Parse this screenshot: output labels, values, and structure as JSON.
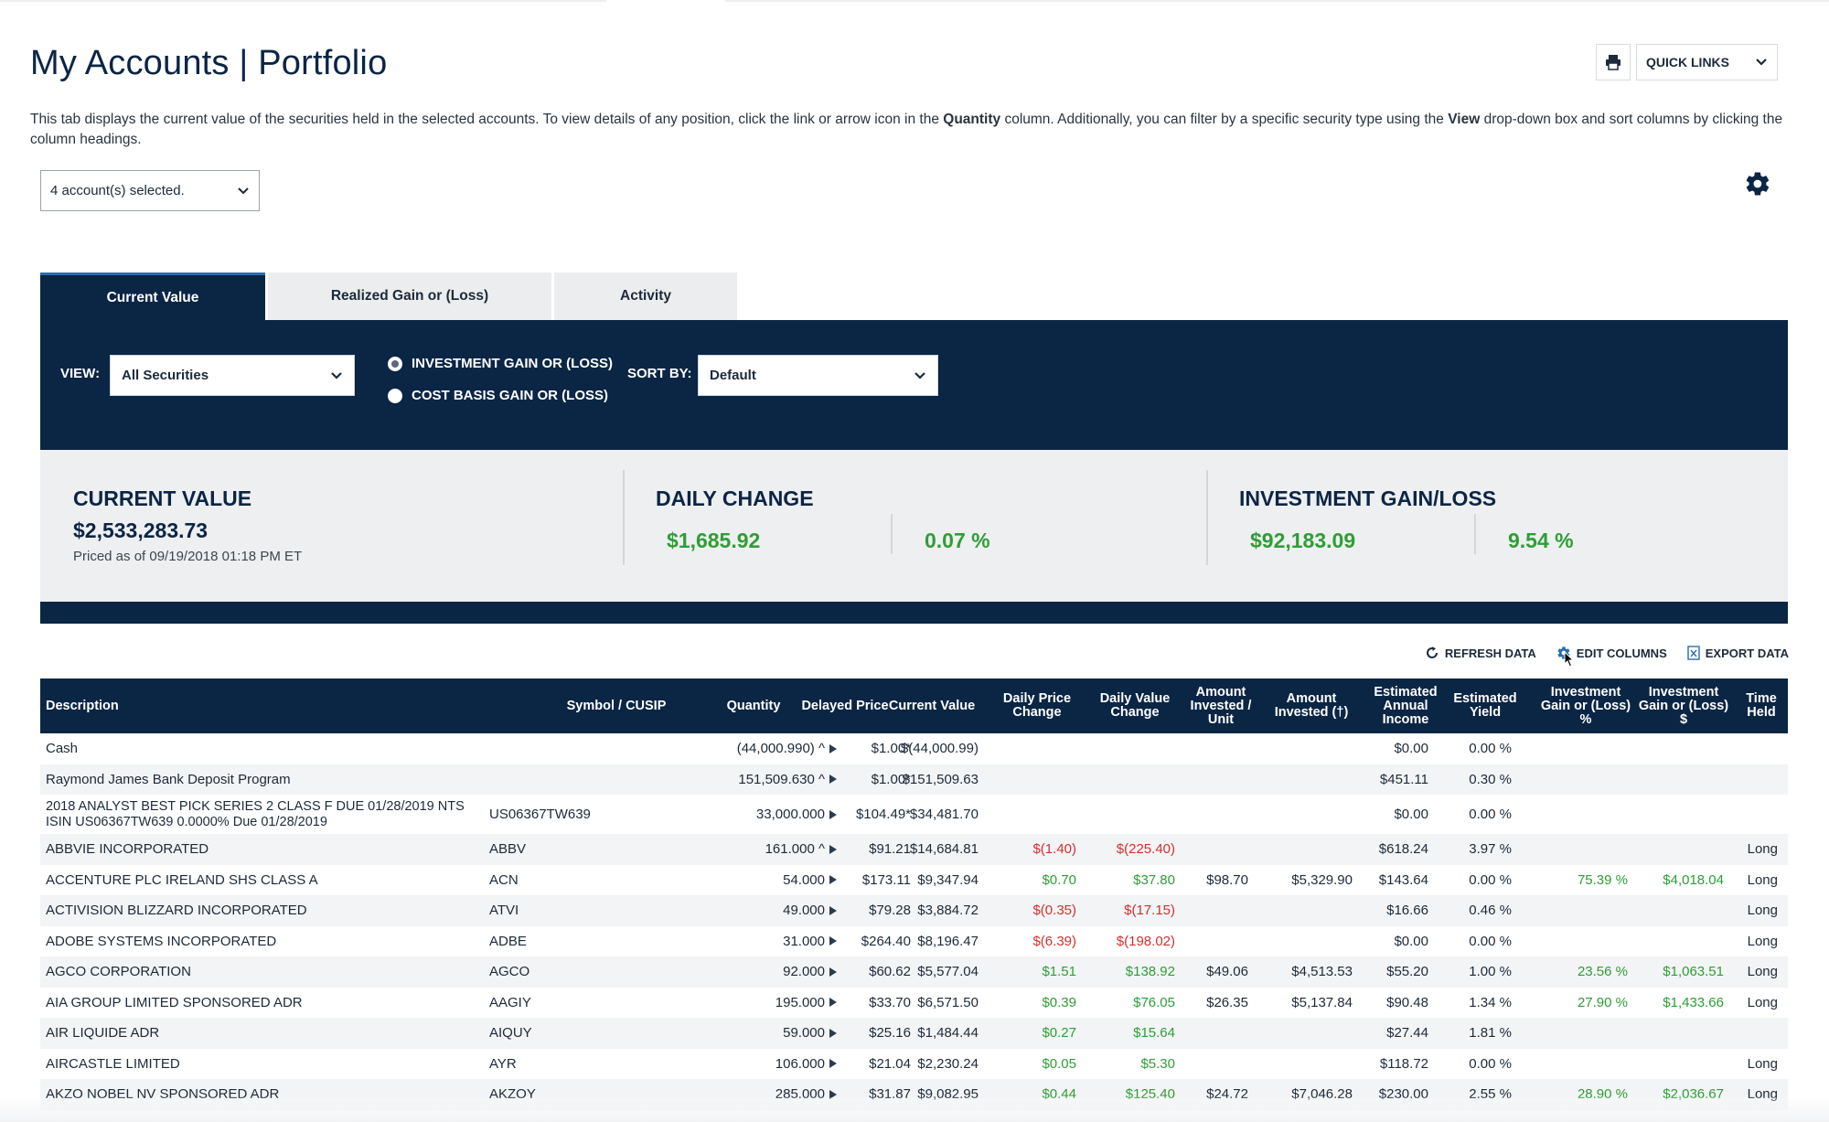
{
  "header": {
    "title": "My Accounts | Portfolio",
    "quick_links": "QUICK LINKS"
  },
  "description": {
    "part1": "This tab displays the current value of the securities held in the selected accounts. To view details of any position, click the link or arrow icon in the ",
    "bold1": "Quantity",
    "part2": " column. Additionally, you can filter by a specific security type using the ",
    "bold2": "View",
    "part3": " drop-down box and sort columns by clicking the column headings."
  },
  "account_select": {
    "value": "4  account(s) selected."
  },
  "tabs": [
    {
      "label": "Current Value",
      "active": true
    },
    {
      "label": "Realized Gain or (Loss)",
      "active": false
    },
    {
      "label": "Activity",
      "active": false
    }
  ],
  "filters": {
    "view_label": "VIEW:",
    "view_value": "All Securities",
    "radio_investment": "INVESTMENT GAIN OR (LOSS)",
    "radio_cost_basis": "COST BASIS GAIN OR (LOSS)",
    "sort_label": "SORT BY:",
    "sort_value": "Default"
  },
  "summary": {
    "current_value_title": "CURRENT VALUE",
    "current_value": "$2,533,283.73",
    "priced_as_of": "Priced as of 09/19/2018 01:18 PM ET",
    "daily_change_title": "DAILY CHANGE",
    "daily_change_amount": "$1,685.92",
    "daily_change_pct": "0.07 %",
    "gain_title": "INVESTMENT GAIN/LOSS",
    "gain_amount": "$92,183.09",
    "gain_pct": "9.54 %"
  },
  "tools": {
    "refresh": "REFRESH DATA",
    "edit_columns": "EDIT COLUMNS",
    "export": "EXPORT DATA"
  },
  "colors": {
    "navy": "#0b2545",
    "positive": "#2e9e35",
    "negative": "#d32f2f"
  },
  "table": {
    "headers": {
      "description": "Description",
      "symbol": "Symbol / CUSIP",
      "quantity": "Quantity",
      "delayed_price": "Delayed Price",
      "current_value": "Current Value",
      "daily_price_change": "Daily Price Change",
      "daily_value_change": "Daily Value Change",
      "amount_invested_unit": "Amount Invested / Unit",
      "amount_invested": "Amount Invested (†)",
      "est_annual_income": "Estimated Annual Income",
      "est_yield": "Estimated Yield",
      "gain_pct": "Investment Gain or (Loss) %",
      "gain_amt": "Investment Gain or (Loss) $",
      "time_held": "Time Held"
    },
    "rows": [
      {
        "desc": "Cash",
        "sym": "",
        "qty": "(44,000.990) ^",
        "price": "$1.00*",
        "value": "$(44,000.99)",
        "dpc": "",
        "dvc": "",
        "aiu": "",
        "ai": "",
        "income": "$0.00",
        "yield": "0.00 %",
        "gpct": "",
        "gamt": "",
        "held": ""
      },
      {
        "desc": "Raymond James Bank Deposit Program",
        "sym": "",
        "qty": "151,509.630 ^",
        "price": "$1.00*",
        "value": "$151,509.63",
        "dpc": "",
        "dvc": "",
        "aiu": "",
        "ai": "",
        "income": "$451.11",
        "yield": "0.30 %",
        "gpct": "",
        "gamt": "",
        "held": ""
      },
      {
        "desc": "2018 ANALYST BEST PICK SERIES 2 CLASS F DUE 01/28/2019 NTS ISIN US06367TW639 0.0000% Due 01/28/2019",
        "sym": "US06367TW639",
        "qty": "33,000.000",
        "price": "$104.49*",
        "value": "$34,481.70",
        "dpc": "",
        "dvc": "",
        "aiu": "",
        "ai": "",
        "income": "$0.00",
        "yield": "0.00 %",
        "gpct": "",
        "gamt": "",
        "held": ""
      },
      {
        "desc": "ABBVIE INCORPORATED",
        "sym": "ABBV",
        "qty": "161.000 ^",
        "price": "$91.21",
        "value": "$14,684.81",
        "dpc": "$(1.40)",
        "dvc": "$(225.40)",
        "aiu": "",
        "ai": "",
        "income": "$618.24",
        "yield": "3.97 %",
        "gpct": "",
        "gamt": "",
        "held": "Long"
      },
      {
        "desc": "ACCENTURE PLC IRELAND SHS CLASS A",
        "sym": "ACN",
        "qty": "54.000",
        "price": "$173.11",
        "value": "$9,347.94",
        "dpc": "$0.70",
        "dvc": "$37.80",
        "aiu": "$98.70",
        "ai": "$5,329.90",
        "income": "$143.64",
        "yield": "0.00 %",
        "gpct": "75.39 %",
        "gamt": "$4,018.04",
        "held": "Long"
      },
      {
        "desc": "ACTIVISION BLIZZARD INCORPORATED",
        "sym": "ATVI",
        "qty": "49.000",
        "price": "$79.28",
        "value": "$3,884.72",
        "dpc": "$(0.35)",
        "dvc": "$(17.15)",
        "aiu": "",
        "ai": "",
        "income": "$16.66",
        "yield": "0.46 %",
        "gpct": "",
        "gamt": "",
        "held": "Long"
      },
      {
        "desc": "ADOBE SYSTEMS INCORPORATED",
        "sym": "ADBE",
        "qty": "31.000",
        "price": "$264.40",
        "value": "$8,196.47",
        "dpc": "$(6.39)",
        "dvc": "$(198.02)",
        "aiu": "",
        "ai": "",
        "income": "$0.00",
        "yield": "0.00 %",
        "gpct": "",
        "gamt": "",
        "held": "Long"
      },
      {
        "desc": "AGCO CORPORATION",
        "sym": "AGCO",
        "qty": "92.000",
        "price": "$60.62",
        "value": "$5,577.04",
        "dpc": "$1.51",
        "dvc": "$138.92",
        "aiu": "$49.06",
        "ai": "$4,513.53",
        "income": "$55.20",
        "yield": "1.00 %",
        "gpct": "23.56 %",
        "gamt": "$1,063.51",
        "held": "Long"
      },
      {
        "desc": "AIA GROUP LIMITED SPONSORED ADR",
        "sym": "AAGIY",
        "qty": "195.000",
        "price": "$33.70",
        "value": "$6,571.50",
        "dpc": "$0.39",
        "dvc": "$76.05",
        "aiu": "$26.35",
        "ai": "$5,137.84",
        "income": "$90.48",
        "yield": "1.34 %",
        "gpct": "27.90 %",
        "gamt": "$1,433.66",
        "held": "Long"
      },
      {
        "desc": "AIR LIQUIDE ADR",
        "sym": "AIQUY",
        "qty": "59.000",
        "price": "$25.16",
        "value": "$1,484.44",
        "dpc": "$0.27",
        "dvc": "$15.64",
        "aiu": "",
        "ai": "",
        "income": "$27.44",
        "yield": "1.81 %",
        "gpct": "",
        "gamt": "",
        "held": ""
      },
      {
        "desc": "AIRCASTLE LIMITED",
        "sym": "AYR",
        "qty": "106.000",
        "price": "$21.04",
        "value": "$2,230.24",
        "dpc": "$0.05",
        "dvc": "$5.30",
        "aiu": "",
        "ai": "",
        "income": "$118.72",
        "yield": "0.00 %",
        "gpct": "",
        "gamt": "",
        "held": "Long"
      },
      {
        "desc": "AKZO NOBEL NV SPONSORED ADR",
        "sym": "AKZOY",
        "qty": "285.000",
        "price": "$31.87",
        "value": "$9,082.95",
        "dpc": "$0.44",
        "dvc": "$125.40",
        "aiu": "$24.72",
        "ai": "$7,046.28",
        "income": "$230.00",
        "yield": "2.55 %",
        "gpct": "28.90 %",
        "gamt": "$2,036.67",
        "held": "Long"
      }
    ]
  }
}
